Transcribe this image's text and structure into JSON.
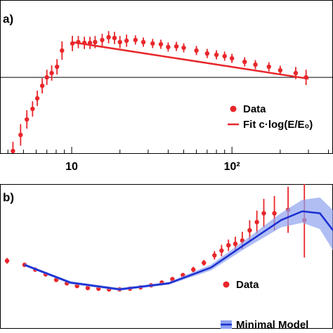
{
  "chart_data": [
    {
      "type": "scatter",
      "panel_label": "a)",
      "log_x": true,
      "xlim": [
        3.57,
        427
      ],
      "ylim": [
        0,
        100
      ],
      "xticks": [
        10,
        {
          "value": 100,
          "label": "10²"
        }
      ],
      "minor_xticks": [
        4,
        5,
        6,
        7,
        8,
        9,
        20,
        30,
        40,
        50,
        60,
        70,
        80,
        90,
        200,
        300,
        400
      ],
      "reference_line": 49.5,
      "legend": "lower right",
      "series": [
        {
          "name": "Data",
          "type": "scatter",
          "color": "#e8262a",
          "x": [
            4.3,
            4.8,
            5.25,
            5.7,
            6.1,
            6.55,
            7.0,
            7.5,
            8.1,
            8.7,
            10.1,
            11,
            12,
            13,
            14,
            15.5,
            17,
            18.5,
            20,
            22,
            25,
            28,
            32,
            36,
            40,
            45,
            50,
            60,
            70,
            80,
            90,
            100,
            120,
            140,
            170,
            200,
            250,
            290
          ],
          "values": [
            1.4,
            11.9,
            22.0,
            28.9,
            35.8,
            44.0,
            49.5,
            52.3,
            56.4,
            67.0,
            71.6,
            72.5,
            72.0,
            72.0,
            72.5,
            73.9,
            75.7,
            75.2,
            72.5,
            73.4,
            73.9,
            72.5,
            71.6,
            71.1,
            69.3,
            69.7,
            68.8,
            67.0,
            65.1,
            64.2,
            63.3,
            61.9,
            59.6,
            57.8,
            56.4,
            54.1,
            52.3,
            49.5
          ],
          "errors": [
            6,
            7,
            6,
            5,
            5,
            5,
            5,
            5,
            5,
            6,
            5,
            4,
            4,
            4,
            4,
            4,
            4,
            4,
            4,
            4,
            3,
            3,
            3,
            3,
            3,
            3,
            3,
            3,
            3,
            3,
            3,
            3,
            3,
            3,
            3,
            3,
            4,
            5
          ]
        },
        {
          "name": "Fit c·log(E/E₀)",
          "type": "line",
          "color": "#e8262a",
          "x": [
            10,
            300
          ],
          "values": [
            72.5,
            48.6
          ]
        }
      ]
    },
    {
      "type": "scatter",
      "panel_label": "b)",
      "log_x": true,
      "xlim": [
        3.57,
        427
      ],
      "ylim": [
        0,
        100
      ],
      "legend": "lower right",
      "series": [
        {
          "name": "Data",
          "type": "scatter",
          "color": "#e8262a",
          "x": [
            3.95,
            5.08,
            5.92,
            6.88,
            8.01,
            9.33,
            10.8,
            12.6,
            14.7,
            17.1,
            19.9,
            23.1,
            26.9,
            31.3,
            36.5,
            42.5,
            49.4,
            57.4,
            66.8,
            77.8,
            86.1,
            95.1,
            105,
            116,
            129,
            143,
            158,
            184,
            224,
            283
          ],
          "values": [
            46.7,
            43.9,
            40.6,
            37.3,
            33.5,
            31.1,
            29.2,
            27.8,
            27.4,
            26.9,
            26.9,
            27.4,
            28.3,
            29.7,
            31.6,
            34.0,
            36.8,
            40.6,
            45.3,
            50.5,
            53.8,
            57.5,
            58.5,
            60.8,
            67.9,
            73.6,
            79.7,
            79.7,
            82.1,
            75.0
          ],
          "errors": [
            2,
            1,
            1,
            1,
            1,
            1,
            1,
            1,
            1,
            1,
            1,
            1,
            1,
            1,
            1,
            1,
            1,
            2,
            2,
            3,
            4,
            4,
            5,
            6,
            7,
            8,
            10,
            12,
            16,
            26
          ]
        },
        {
          "name": "Minimal Model",
          "type": "band",
          "color": "#1a2fd1",
          "band_color": "#8fa3ef",
          "x": [
            5.08,
            9.81,
            19.9,
            40.4,
            73.9,
            122,
            203,
            275,
            354,
            427
          ],
          "values": [
            43.9,
            31.6,
            26.9,
            31.1,
            42.0,
            58.5,
            75.0,
            81.1,
            79.7,
            67.9
          ],
          "errors": [
            1,
            1,
            1,
            1,
            2,
            3,
            5,
            8,
            11,
            14
          ]
        }
      ]
    }
  ]
}
